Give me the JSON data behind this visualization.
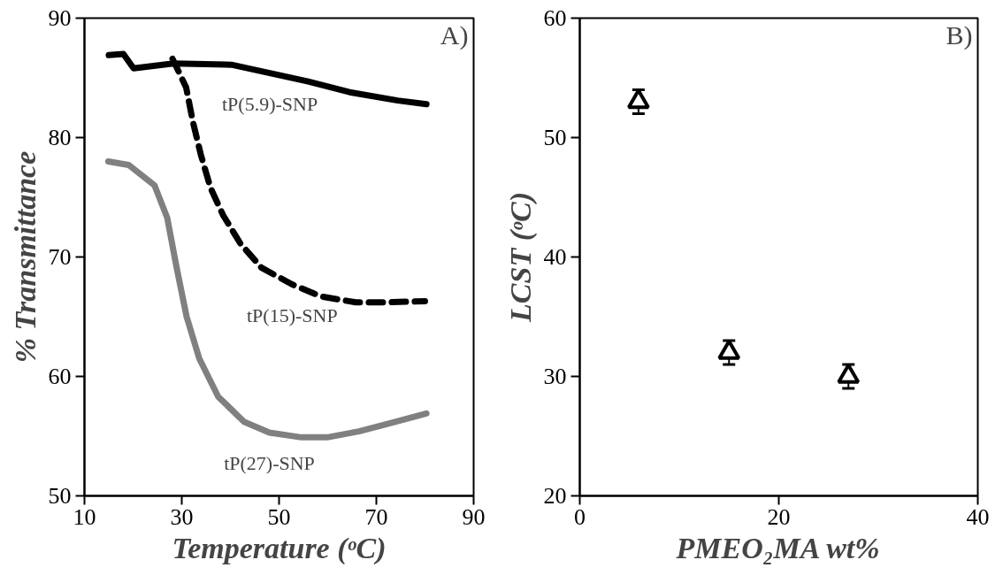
{
  "chart_data": [
    {
      "type": "line",
      "xlabel": "Temperature (ᵒC)",
      "ylabel": "% Transmittance",
      "xlim": [
        10,
        90
      ],
      "ylim": [
        50,
        90
      ],
      "xticks": [
        10,
        30,
        50,
        70,
        90
      ],
      "yticks": [
        50,
        60,
        70,
        80,
        90
      ],
      "grid": false,
      "marker": "none",
      "series": [
        {
          "name": "tP(5.9)-SNP",
          "color": "#000000",
          "line_style": "solid",
          "x": [
            15,
            18,
            20.1,
            28.3,
            40.2,
            48.1,
            56,
            64.5,
            74.4,
            80.3
          ],
          "values": [
            86.9,
            87,
            85.8,
            86.2,
            86.1,
            85.4,
            84.7,
            83.8,
            83.1,
            82.8
          ]
        },
        {
          "name": "tP(15)-SNP",
          "color": "#000000",
          "line_style": "dashed",
          "x": [
            28.1,
            30.9,
            32.3,
            33.9,
            35.9,
            38.5,
            42.1,
            46.4,
            52.7,
            58.6,
            65.8,
            72.1,
            80
          ],
          "values": [
            86.6,
            84.2,
            81.3,
            78.6,
            75.8,
            73.5,
            71.1,
            69.1,
            67.7,
            66.7,
            66.2,
            66.2,
            66.3
          ]
        },
        {
          "name": "tP(27)-SNP",
          "color": "#808080",
          "line_style": "solid",
          "x": [
            14.9,
            19.1,
            24.4,
            27,
            29,
            31,
            33.6,
            37.5,
            42.8,
            48,
            54.6,
            59.9,
            66.4,
            73,
            80.3
          ],
          "values": [
            78,
            77.7,
            76,
            73.3,
            69,
            65,
            61.5,
            58.3,
            56.2,
            55.3,
            54.9,
            54.9,
            55.4,
            56.1,
            56.9
          ]
        }
      ],
      "annotations": [
        "A)"
      ]
    },
    {
      "type": "scatter",
      "xlabel": "PMEO₂MA wt%",
      "ylabel": "LCST (ᵒC)",
      "xlim": [
        0,
        40
      ],
      "ylim": [
        20,
        60
      ],
      "xticks": [
        0,
        20,
        40
      ],
      "yticks": [
        20,
        30,
        40,
        50,
        60
      ],
      "grid": false,
      "marker": "triangle",
      "x": [
        5.9,
        15,
        27
      ],
      "values": [
        53,
        32,
        30
      ],
      "errors": [
        1,
        1,
        1
      ],
      "color": "#000000",
      "annotations": [
        "B)"
      ]
    }
  ]
}
